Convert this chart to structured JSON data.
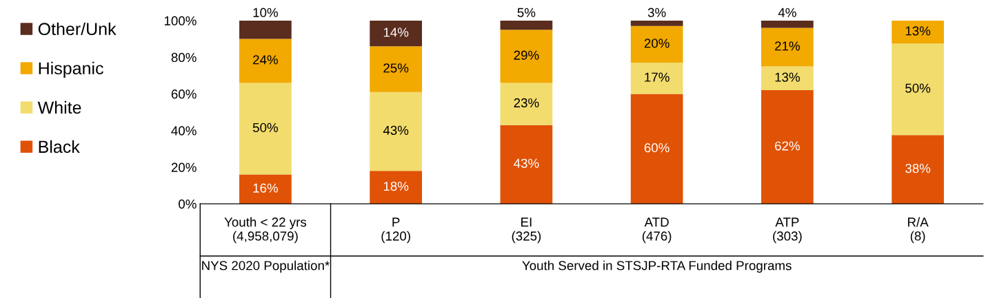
{
  "chart_data": {
    "type": "bar",
    "stacked": true,
    "categories": [
      "Youth < 22 yrs\n(4,958,079)",
      "P\n(120)",
      "EI\n(325)",
      "ATD\n(476)",
      "ATP\n(303)",
      "R/A\n(8)"
    ],
    "series": [
      {
        "name": "Black",
        "color": "#e05206",
        "values": [
          16,
          18,
          43,
          60,
          62,
          37.5
        ],
        "value_labels": [
          "16%",
          "18%",
          "43%",
          "60%",
          "62%",
          "38%"
        ]
      },
      {
        "name": "White",
        "color": "#f2dc6e",
        "values": [
          50,
          43,
          23,
          17,
          13,
          50
        ],
        "value_labels": [
          "50%",
          "43%",
          "23%",
          "17%",
          "13%",
          "50%"
        ]
      },
      {
        "name": "Hispanic",
        "color": "#f2a900",
        "values": [
          24,
          25,
          29,
          20,
          21,
          12.5
        ],
        "value_labels": [
          "24%",
          "25%",
          "29%",
          "20%",
          "21%",
          "13%"
        ]
      },
      {
        "name": "Other/Unk",
        "color": "#5a2d1e",
        "values": [
          10,
          14,
          5,
          3,
          4,
          null
        ],
        "value_labels": [
          "10%",
          "14%",
          "5%",
          "3%",
          "4%",
          null
        ]
      }
    ],
    "ylim": [
      0,
      100
    ],
    "yticks": [
      {
        "value": 0,
        "label": "0%"
      },
      {
        "value": 20,
        "label": "20%"
      },
      {
        "value": 40,
        "label": "40%"
      },
      {
        "value": 60,
        "label": "60%"
      },
      {
        "value": 80,
        "label": "80%"
      },
      {
        "value": 100,
        "label": "100%"
      }
    ],
    "annotations": [
      "NYS 2020 Population*",
      "Youth Served in STSJP-RTA Funded Programs"
    ],
    "legend": "left",
    "grid": false
  }
}
